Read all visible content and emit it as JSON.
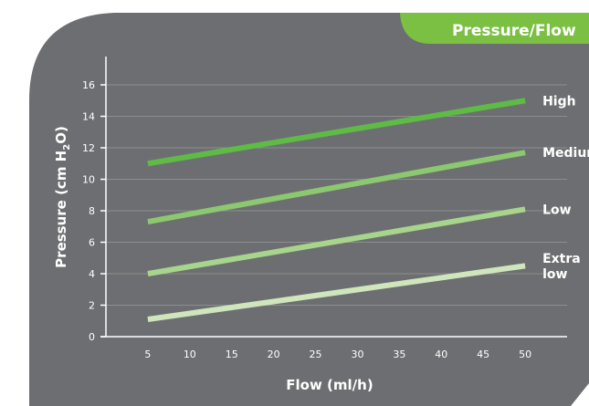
{
  "tab": {
    "label": "Pressure/Flow"
  },
  "colors": {
    "panel": "#6d6e71",
    "tab": "#7bc043",
    "grid": "#8c8d90",
    "axis": "#ffffff"
  },
  "chart_data": {
    "type": "line",
    "xlabel": "Flow (ml/h)",
    "ylabel": "Pressure (cm H2O)",
    "xlim": [
      0,
      55
    ],
    "ylim": [
      0,
      16
    ],
    "x_ticks": [
      5,
      10,
      15,
      20,
      25,
      30,
      35,
      40,
      45,
      50
    ],
    "y_ticks": [
      0,
      2,
      4,
      6,
      8,
      10,
      12,
      14,
      16
    ],
    "grid": true,
    "series": [
      {
        "name": "High",
        "label_lines": [
          "High"
        ],
        "color": "#5ebb46",
        "points": [
          [
            5,
            11.0
          ],
          [
            50,
            15.0
          ]
        ]
      },
      {
        "name": "Medium",
        "label_lines": [
          "Medium"
        ],
        "color": "#8cc870",
        "points": [
          [
            5,
            7.3
          ],
          [
            50,
            11.7
          ]
        ]
      },
      {
        "name": "Low",
        "label_lines": [
          "Low"
        ],
        "color": "#a7d58c",
        "points": [
          [
            5,
            4.0
          ],
          [
            50,
            8.1
          ]
        ]
      },
      {
        "name": "Extra low",
        "label_lines": [
          "Extra",
          "low"
        ],
        "color": "#cfe6bd",
        "points": [
          [
            5,
            1.1
          ],
          [
            50,
            4.5
          ]
        ]
      }
    ]
  }
}
